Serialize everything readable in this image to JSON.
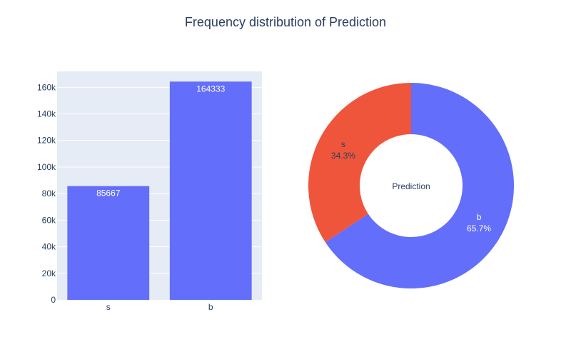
{
  "chart_data": [
    {
      "type": "bar",
      "title": "Frequency distribution of Prediction",
      "categories": [
        "s",
        "b"
      ],
      "values": [
        85667,
        164333
      ],
      "data_labels": [
        "85667",
        "164333"
      ],
      "ylim": [
        0,
        172000
      ],
      "yticks": [
        0,
        20000,
        40000,
        60000,
        80000,
        100000,
        120000,
        140000,
        160000
      ],
      "ytick_labels": [
        "0",
        "20k",
        "40k",
        "60k",
        "80k",
        "100k",
        "120k",
        "140k",
        "160k"
      ],
      "xlabel": "",
      "ylabel": "",
      "grid": true,
      "colors": {
        "bar": "#636efa",
        "plot_bg": "#e5ecf6",
        "grid": "#ffffff",
        "text": "#2a3f5f"
      }
    },
    {
      "type": "pie",
      "hole": true,
      "center_label": "Prediction",
      "slices": [
        {
          "label": "b",
          "value": 164333,
          "percent": "65.7%",
          "color": "#636efa"
        },
        {
          "label": "s",
          "value": 85667,
          "percent": "34.3%",
          "color": "#ef553b"
        }
      ]
    }
  ]
}
